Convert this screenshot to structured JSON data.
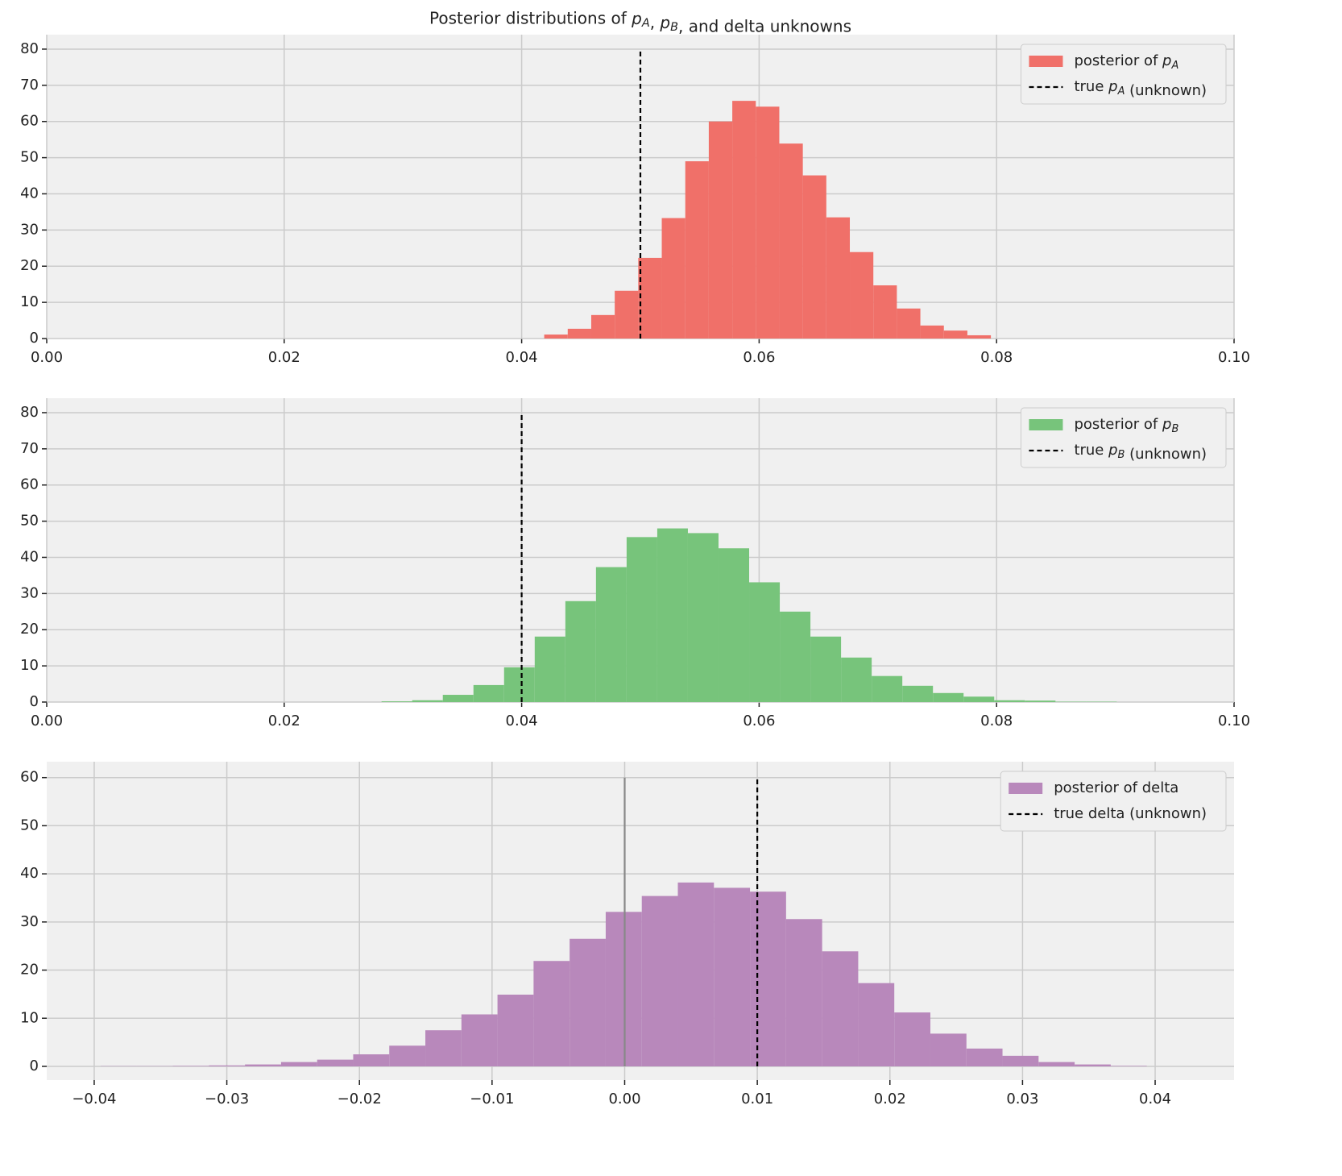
{
  "chart_data": [
    {
      "type": "histogram",
      "title": "Posterior distributions of pA, pB, and delta unknowns",
      "bins": [
        0.0419,
        0.04388,
        0.04586,
        0.04784,
        0.04982,
        0.0518,
        0.05378,
        0.05576,
        0.05774,
        0.05972,
        0.0617,
        0.06368,
        0.06566,
        0.06764,
        0.06962,
        0.0716,
        0.07358,
        0.07556,
        0.07754,
        0.07952
      ],
      "series": [
        {
          "name": "posterior of pA",
          "color": "#f07069",
          "values": [
            1.1,
            2.7,
            6.5,
            13.2,
            22.3,
            33.3,
            49,
            60,
            65.7,
            64.1,
            53.9,
            45.1,
            33.5,
            23.9,
            14.7,
            8.3,
            3.6,
            2.2,
            0.9
          ]
        }
      ],
      "lines": [
        {
          "name": "true pA (unknown)",
          "x": 0.05,
          "ymax": 80,
          "color": "#000000",
          "dashed": true
        }
      ],
      "xlim": [
        0,
        0.1
      ],
      "ylim": [
        0,
        84
      ],
      "xticks": [
        {
          "value": 0,
          "label": "0.00"
        },
        {
          "value": 0.02,
          "label": "0.02"
        },
        {
          "value": 0.04,
          "label": "0.04"
        },
        {
          "value": 0.06,
          "label": "0.06"
        },
        {
          "value": 0.08,
          "label": "0.08"
        },
        {
          "value": 0.1,
          "label": "0.10"
        }
      ],
      "yticks": [
        0,
        10,
        20,
        30,
        40,
        50,
        60,
        70,
        80
      ],
      "grid": true,
      "legend": "upper right"
    },
    {
      "type": "histogram",
      "bins": [
        0.0282,
        0.03078,
        0.03336,
        0.03594,
        0.03852,
        0.0411,
        0.04368,
        0.04626,
        0.04884,
        0.05142,
        0.054,
        0.05658,
        0.05916,
        0.06174,
        0.06432,
        0.0669,
        0.06948,
        0.07206,
        0.07464,
        0.07722,
        0.0798,
        0.08238,
        0.08496,
        0.08754,
        0.09012
      ],
      "series": [
        {
          "name": "posterior of pB",
          "color": "#77c47b",
          "values": [
            0.2,
            0.5,
            2,
            4.7,
            9.6,
            18.1,
            27.9,
            37.3,
            45.6,
            48,
            46.7,
            42.5,
            33.1,
            25,
            18.1,
            12.3,
            7.2,
            4.5,
            2.5,
            1.5,
            0.5,
            0.4,
            0.1,
            0.1
          ]
        }
      ],
      "lines": [
        {
          "name": "true pB (unknown)",
          "x": 0.04,
          "ymax": 80,
          "color": "#000000",
          "dashed": true
        }
      ],
      "xlim": [
        0,
        0.1
      ],
      "ylim": [
        0,
        84
      ],
      "xticks": [
        {
          "value": 0,
          "label": "0.00"
        },
        {
          "value": 0.02,
          "label": "0.02"
        },
        {
          "value": 0.04,
          "label": "0.04"
        },
        {
          "value": 0.06,
          "label": "0.06"
        },
        {
          "value": 0.08,
          "label": "0.08"
        },
        {
          "value": 0.1,
          "label": "0.10"
        }
      ],
      "yticks": [
        0,
        10,
        20,
        30,
        40,
        50,
        60,
        70,
        80
      ],
      "grid": true,
      "legend": "upper right"
    },
    {
      "type": "histogram",
      "bins": [
        -0.03951,
        -0.03679,
        -0.03407,
        -0.03135,
        -0.02863,
        -0.02591,
        -0.02319,
        -0.02047,
        -0.01775,
        -0.01503,
        -0.01231,
        -0.00959,
        -0.00687,
        -0.00415,
        -0.00143,
        0.00129,
        0.00401,
        0.00673,
        0.00945,
        0.01217,
        0.01489,
        0.01761,
        0.02033,
        0.02305,
        0.02577,
        0.02849,
        0.03121,
        0.03393,
        0.03665,
        0.03937
      ],
      "series": [
        {
          "name": "posterior of delta",
          "color": "#b888bb",
          "values": [
            0.05,
            0.05,
            0.1,
            0.2,
            0.4,
            0.9,
            1.4,
            2.5,
            4.3,
            7.5,
            10.8,
            14.9,
            21.9,
            26.5,
            32.1,
            35.4,
            38.2,
            37.1,
            36.3,
            30.6,
            23.9,
            17.3,
            11.2,
            6.8,
            3.7,
            2.2,
            0.9,
            0.4,
            0.1
          ]
        }
      ],
      "lines": [
        {
          "name": "true delta (unknown)",
          "x": 0.01,
          "ymax": 60,
          "color": "#000000",
          "dashed": true
        },
        {
          "x": 0,
          "ymax": 60,
          "color": "#888888",
          "dashed": false
        }
      ],
      "xlim": [
        -0.04358,
        0.04595
      ],
      "ylim": [
        -2.85,
        63.3
      ],
      "xticks": [
        {
          "value": -0.04,
          "label": "−0.04"
        },
        {
          "value": -0.03,
          "label": "−0.03"
        },
        {
          "value": -0.02,
          "label": "−0.02"
        },
        {
          "value": -0.01,
          "label": "−0.01"
        },
        {
          "value": 0,
          "label": "0.00"
        },
        {
          "value": 0.01,
          "label": "0.01"
        },
        {
          "value": 0.02,
          "label": "0.02"
        },
        {
          "value": 0.03,
          "label": "0.03"
        },
        {
          "value": 0.04,
          "label": "0.04"
        }
      ],
      "yticks": [
        0,
        10,
        20,
        30,
        40,
        50,
        60
      ],
      "grid": true,
      "legend": "upper right"
    }
  ]
}
